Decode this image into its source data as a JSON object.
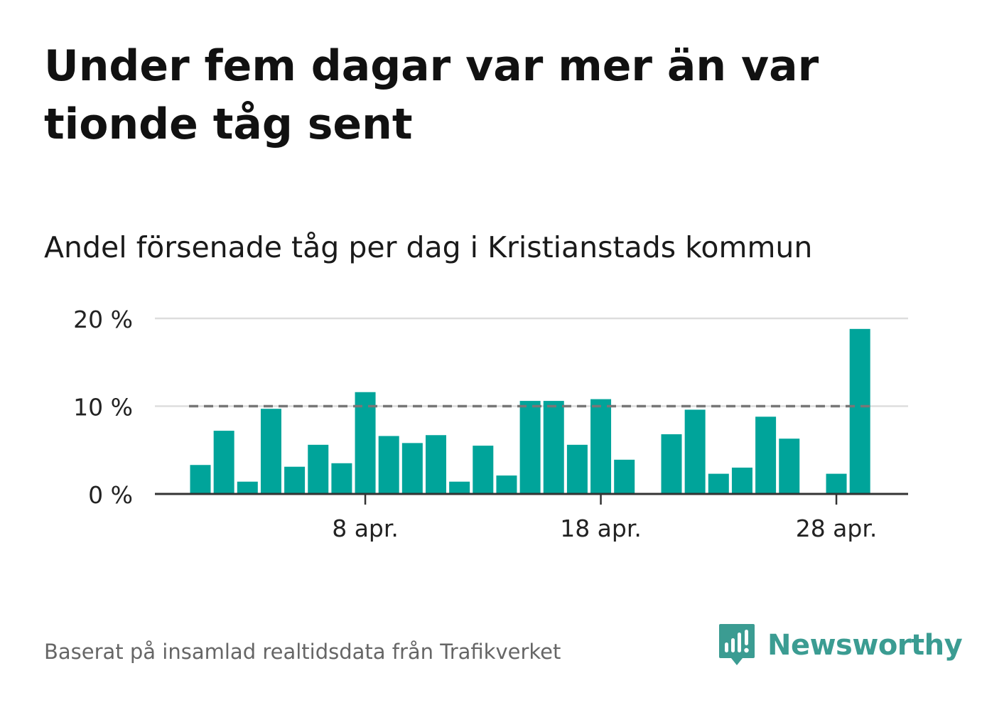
{
  "title": "Under fem dagar var mer än var tionde tåg sent",
  "subtitle": "Andel försenade tåg per dag i Kristianstads kommun",
  "source": "Baserat på insamlad realtidsdata från Trafikverket",
  "brand": {
    "name": "Newsworthy",
    "logo_icon": "newsworthy-logo-icon",
    "color": "#3b9c92"
  },
  "colors": {
    "bar": "#00a49a",
    "threshold": "#777777",
    "grid": "#dddddd",
    "axis": "#333333",
    "text": "#111111",
    "muted": "#666666"
  },
  "chart_data": {
    "type": "bar",
    "x": [
      "1 apr.",
      "2 apr.",
      "3 apr.",
      "4 apr.",
      "5 apr.",
      "6 apr.",
      "7 apr.",
      "8 apr.",
      "9 apr.",
      "10 apr.",
      "11 apr.",
      "12 apr.",
      "13 apr.",
      "14 apr.",
      "15 apr.",
      "16 apr.",
      "17 apr.",
      "18 apr.",
      "19 apr.",
      "20 apr.",
      "21 apr.",
      "22 apr.",
      "23 apr.",
      "24 apr.",
      "25 apr.",
      "26 apr.",
      "27 apr.",
      "28 apr.",
      "29 apr."
    ],
    "values": [
      3.3,
      7.2,
      1.4,
      9.7,
      3.1,
      5.6,
      3.5,
      11.6,
      6.6,
      5.8,
      6.7,
      1.4,
      5.5,
      2.1,
      10.6,
      10.6,
      5.6,
      10.8,
      3.9,
      null,
      6.8,
      9.6,
      2.3,
      3.0,
      8.8,
      6.3,
      null,
      2.3,
      18.8
    ],
    "ylim": [
      0,
      20
    ],
    "yticks": [
      0,
      10,
      20
    ],
    "ytick_labels": [
      "0 %",
      "10 %",
      "20 %"
    ],
    "xticks": [
      "8 apr.",
      "18 apr.",
      "28 apr."
    ],
    "threshold": 10,
    "grid": true,
    "legend": "none"
  }
}
